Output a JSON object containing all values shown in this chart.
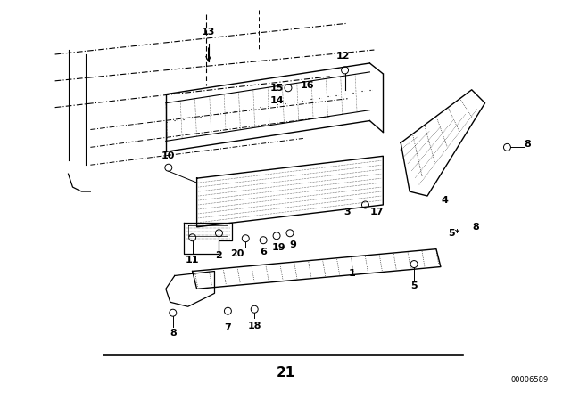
{
  "bg_color": "#ffffff",
  "line_color": "#000000",
  "fig_width": 6.4,
  "fig_height": 4.48,
  "dpi": 100,
  "bottom_label": "21",
  "watermark": "00006589"
}
